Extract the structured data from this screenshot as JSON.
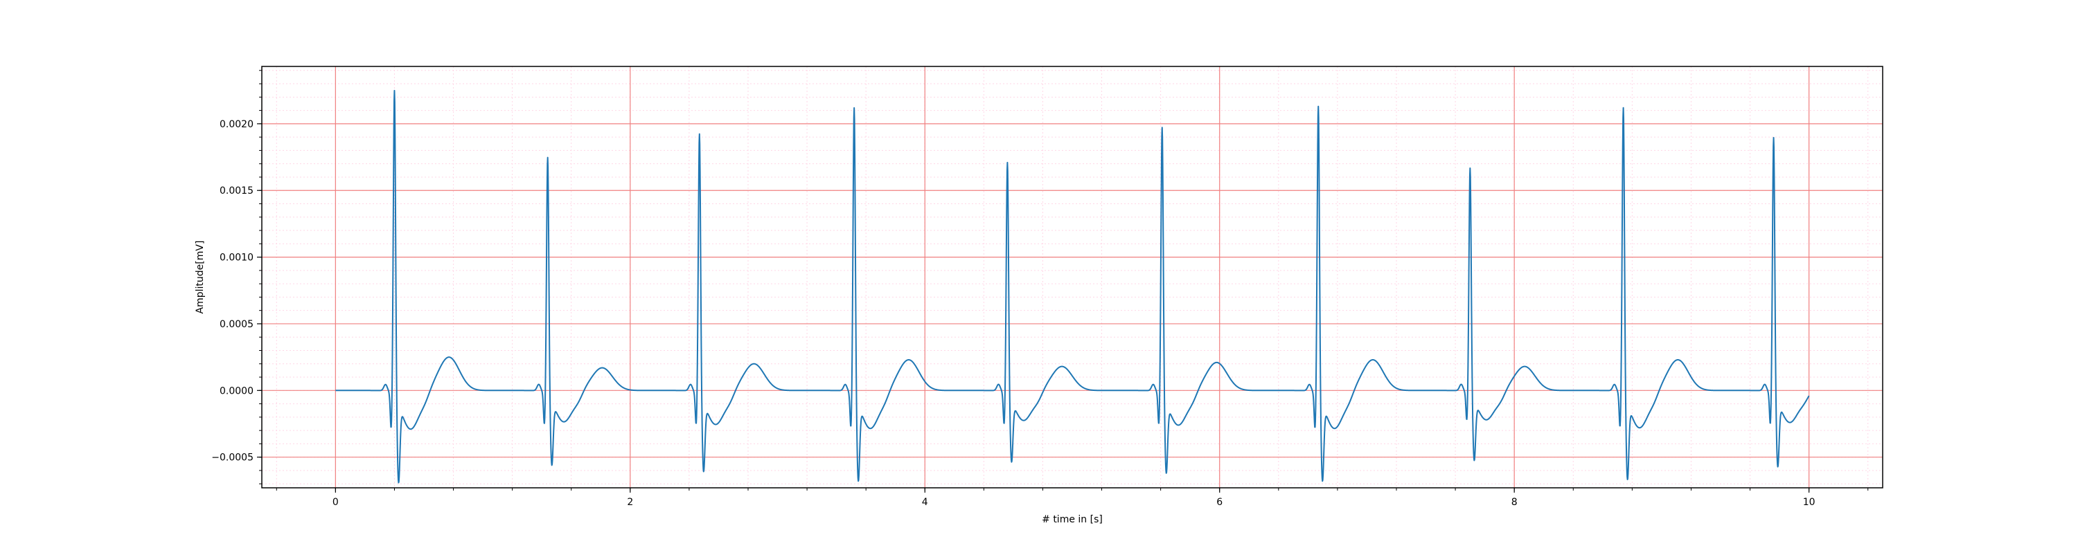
{
  "chart_data": {
    "type": "line",
    "title": "",
    "xlabel": "# time in [s]",
    "ylabel": "Amplitude[mV]",
    "xlim": [
      -0.5,
      10.5
    ],
    "ylim": [
      -0.00073,
      0.00243
    ],
    "x_ticks": [
      0,
      2,
      4,
      6,
      8,
      10
    ],
    "x_tick_labels": [
      "0",
      "2",
      "4",
      "6",
      "8",
      "10"
    ],
    "y_ticks": [
      -0.0005,
      0.0,
      0.0005,
      0.001,
      0.0015,
      0.002
    ],
    "y_tick_labels": [
      "−0.0005",
      "0.0000",
      "0.0005",
      "0.0010",
      "0.0015",
      "0.0020"
    ],
    "grid": {
      "major": true,
      "minor": true,
      "major_color": "#f08080",
      "minor_color": "#ffd6e6"
    },
    "legend": "none",
    "series": [
      {
        "color": "#1f77b4",
        "beats": [
          {
            "r_time": 0.4,
            "r_amp": 0.00228,
            "q_amp": -0.00028,
            "s_amp": -0.00058,
            "t_amp": 0.00021
          },
          {
            "r_time": 1.44,
            "r_amp": 0.00177,
            "q_amp": -0.00025,
            "s_amp": -0.00047,
            "t_amp": 0.00013
          },
          {
            "r_time": 2.47,
            "r_amp": 0.00195,
            "q_amp": -0.00025,
            "s_amp": -0.00051,
            "t_amp": 0.00016
          },
          {
            "r_time": 3.52,
            "r_amp": 0.00215,
            "q_amp": -0.00027,
            "s_amp": -0.00057,
            "t_amp": 0.00019
          },
          {
            "r_time": 4.56,
            "r_amp": 0.00173,
            "q_amp": -0.00025,
            "s_amp": -0.00045,
            "t_amp": 0.00014
          },
          {
            "r_time": 5.61,
            "r_amp": 0.002,
            "q_amp": -0.00025,
            "s_amp": -0.00052,
            "t_amp": 0.00017
          },
          {
            "r_time": 6.67,
            "r_amp": 0.00216,
            "q_amp": -0.00028,
            "s_amp": -0.00057,
            "t_amp": 0.00019
          },
          {
            "r_time": 7.7,
            "r_amp": 0.00169,
            "q_amp": -0.00022,
            "s_amp": -0.00044,
            "t_amp": 0.00014
          },
          {
            "r_time": 8.74,
            "r_amp": 0.00215,
            "q_amp": -0.00027,
            "s_amp": -0.00056,
            "t_amp": 0.00019
          },
          {
            "r_time": 9.76,
            "r_amp": 0.00192,
            "q_amp": -0.00025,
            "s_amp": -0.00048,
            "t_amp": 0.0
          }
        ],
        "x_start": 0.0,
        "x_end": 10.0
      }
    ]
  }
}
